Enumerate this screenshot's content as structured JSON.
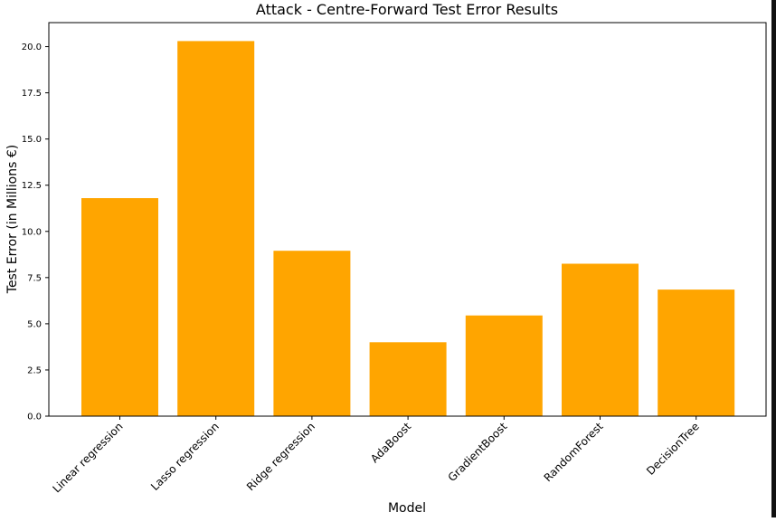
{
  "chart_data": {
    "type": "bar",
    "title": "Attack - Centre-Forward Test Error Results",
    "xlabel": "Model",
    "ylabel": "Test Error (in Millions €)",
    "categories": [
      "Linear regression",
      "Lasso regression",
      "Ridge regression",
      "AdaBoost",
      "GradientBoost",
      "RandomForest",
      "DecisionTree"
    ],
    "values": [
      11.8,
      20.3,
      8.95,
      4.0,
      5.45,
      8.25,
      6.85
    ],
    "ylim": [
      0,
      21.3
    ],
    "yticks": [
      "0.0",
      "2.5",
      "5.0",
      "7.5",
      "10.0",
      "12.5",
      "15.0",
      "17.5",
      "20.0"
    ],
    "grid": false,
    "bar_color": "#FFA500"
  }
}
